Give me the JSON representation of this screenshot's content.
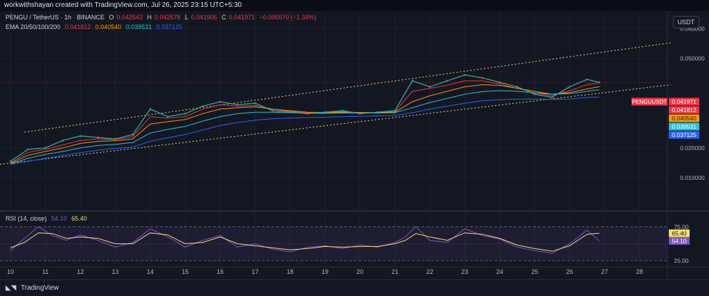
{
  "header": {
    "attribution": "workwithshayan created with TradingView.com, Jul 26, 2025 23:15 UTC+5:30"
  },
  "legend": {
    "symbol": "PENGU / TetherUS · 1h · BINANCE",
    "ohlc": [
      {
        "k": "O",
        "v": "0.042543"
      },
      {
        "k": "H",
        "v": "0.042578"
      },
      {
        "k": "L",
        "v": "0.041905"
      },
      {
        "k": "C",
        "v": "0.041971"
      }
    ],
    "change": "−0.000570 (−1.34%)",
    "ema_label": "EMA 20/50/100/200",
    "ema_values": [
      {
        "v": "0.041812",
        "color": "#f23645"
      },
      {
        "v": "0.040540",
        "color": "#ff9800"
      },
      {
        "v": "0.039531",
        "color": "#26c6da"
      },
      {
        "v": "0.037125",
        "color": "#2962ff"
      }
    ],
    "rsi_label": "RSI (14, close)",
    "rsi_value": "54.10",
    "rsi_ma_value": "65.40"
  },
  "currency": "USDT",
  "price_axis": {
    "ticks": [
      "0.060000",
      "0.050000",
      "0.020000",
      "0.010000"
    ]
  },
  "price_tags": {
    "symbol": "PENGUUSDT",
    "items": [
      {
        "label": "0.041971",
        "value": 0.041971,
        "color": "#f23645"
      },
      {
        "label": "0.041812",
        "value": 0.041812,
        "color": "#f23645"
      },
      {
        "label": "0.040540",
        "value": 0.04054,
        "color": "#ff9800"
      },
      {
        "label": "0.039531",
        "value": 0.039531,
        "color": "#26c6da"
      },
      {
        "label": "0.037125",
        "value": 0.037125,
        "color": "#2962ff"
      }
    ]
  },
  "rsi_axis": {
    "ticks": [
      "75.00",
      "25.00"
    ],
    "tags": [
      {
        "label": "65.40",
        "value": 65.4,
        "color": "#f7dd74",
        "text": "#131722"
      },
      {
        "label": "54.10",
        "value": 54.1,
        "color": "#7e57c2",
        "text": "#ffffff"
      }
    ]
  },
  "time_axis": {
    "labels": [
      "10",
      "11",
      "12",
      "13",
      "14",
      "15",
      "16",
      "17",
      "18",
      "19",
      "20",
      "21",
      "22",
      "23",
      "24",
      "25",
      "26",
      "27",
      "28"
    ]
  },
  "footer": {
    "brand": "TradingView"
  },
  "chart_data": {
    "type": "line",
    "title": "PENGU / TetherUS · 1h · BINANCE",
    "xlabel": "",
    "ylabel": "",
    "x": [
      10,
      10.5,
      11,
      11.5,
      12,
      12.5,
      13,
      13.5,
      14,
      14.5,
      15,
      15.5,
      16,
      16.5,
      17,
      17.5,
      18,
      18.5,
      19,
      19.5,
      20,
      20.5,
      21,
      21.5,
      22,
      22.5,
      23,
      23.5,
      24,
      24.5,
      25,
      25.5,
      26,
      26.5,
      26.85
    ],
    "ylim": [
      0,
      0.065
    ],
    "xlim": [
      9.7,
      28.8
    ],
    "series": [
      {
        "name": "PENGUUSDT",
        "color": "#26a69a",
        "values": [
          0.0155,
          0.0195,
          0.02,
          0.0225,
          0.024,
          0.0235,
          0.023,
          0.0245,
          0.033,
          0.0305,
          0.0315,
          0.034,
          0.0355,
          0.0345,
          0.035,
          0.0325,
          0.032,
          0.0315,
          0.032,
          0.0325,
          0.0315,
          0.032,
          0.0325,
          0.0425,
          0.0405,
          0.0425,
          0.0445,
          0.0435,
          0.042,
          0.0405,
          0.038,
          0.037,
          0.0405,
          0.043,
          0.041971
        ]
      },
      {
        "name": "EMA 20",
        "color": "#f23645",
        "values": [
          0.015,
          0.0185,
          0.0195,
          0.021,
          0.0225,
          0.023,
          0.0228,
          0.0238,
          0.0305,
          0.03,
          0.0305,
          0.033,
          0.0345,
          0.034,
          0.0343,
          0.033,
          0.0322,
          0.0318,
          0.0318,
          0.0322,
          0.0318,
          0.0319,
          0.0322,
          0.039,
          0.04,
          0.041,
          0.0425,
          0.0425,
          0.0415,
          0.04,
          0.0385,
          0.0375,
          0.0392,
          0.0412,
          0.041812
        ]
      },
      {
        "name": "EMA 50",
        "color": "#ff9800",
        "values": [
          0.0148,
          0.0175,
          0.0188,
          0.02,
          0.0215,
          0.0222,
          0.0224,
          0.023,
          0.028,
          0.0288,
          0.0295,
          0.0315,
          0.033,
          0.0335,
          0.0338,
          0.033,
          0.0325,
          0.032,
          0.0319,
          0.032,
          0.0319,
          0.0319,
          0.032,
          0.0355,
          0.0375,
          0.039,
          0.0405,
          0.0412,
          0.041,
          0.04,
          0.039,
          0.038,
          0.0386,
          0.0398,
          0.04054
        ]
      },
      {
        "name": "EMA 100",
        "color": "#26c6da",
        "values": [
          0.0146,
          0.0165,
          0.0178,
          0.0188,
          0.02,
          0.0208,
          0.0212,
          0.0218,
          0.025,
          0.0262,
          0.0272,
          0.029,
          0.0305,
          0.0315,
          0.032,
          0.032,
          0.0318,
          0.0316,
          0.0316,
          0.0317,
          0.0317,
          0.0317,
          0.0318,
          0.0335,
          0.0352,
          0.0366,
          0.038,
          0.0389,
          0.0392,
          0.039,
          0.0385,
          0.038,
          0.0382,
          0.039,
          0.039531
        ]
      },
      {
        "name": "EMA 200",
        "color": "#2962ff",
        "values": [
          0.0145,
          0.0155,
          0.0165,
          0.0174,
          0.0184,
          0.0192,
          0.0198,
          0.0203,
          0.0222,
          0.0234,
          0.0245,
          0.026,
          0.0275,
          0.0285,
          0.0293,
          0.0298,
          0.03,
          0.0302,
          0.0303,
          0.0305,
          0.0306,
          0.0307,
          0.0309,
          0.0318,
          0.033,
          0.034,
          0.035,
          0.0358,
          0.0362,
          0.0364,
          0.0364,
          0.0363,
          0.0364,
          0.0369,
          0.037125
        ]
      }
    ],
    "channel": {
      "upper": {
        "x": [
          10.4,
          28.9
        ],
        "y": [
          0.0253,
          0.0553
        ]
      },
      "lower": {
        "x": [
          9.7,
          28.9
        ],
        "y": [
          0.0145,
          0.0412
        ]
      }
    },
    "rsi": {
      "ylim": [
        20,
        85
      ],
      "x": [
        10,
        10.4,
        10.8,
        11.2,
        11.6,
        12,
        12.5,
        13,
        13.5,
        14,
        14.5,
        15,
        15.5,
        16,
        16.5,
        17,
        17.5,
        18,
        18.5,
        19,
        19.5,
        20,
        20.5,
        21,
        21.3,
        21.6,
        22,
        22.5,
        23,
        23.5,
        24,
        24.5,
        25,
        25.5,
        26,
        26.5,
        26.85
      ],
      "rsi_values": [
        40,
        58,
        75,
        62,
        55,
        63,
        55,
        45,
        52,
        72,
        60,
        45,
        55,
        62,
        45,
        50,
        42,
        38,
        45,
        47,
        43,
        48,
        45,
        52,
        60,
        75,
        55,
        52,
        72,
        62,
        57,
        45,
        40,
        36,
        50,
        70,
        54.1
      ],
      "rsi_ma_values": [
        44,
        52,
        66,
        65,
        58,
        60,
        58,
        50,
        50,
        66,
        63,
        50,
        52,
        60,
        50,
        47,
        44,
        41,
        43,
        46,
        45,
        46,
        46,
        50,
        55,
        65,
        60,
        55,
        66,
        64,
        58,
        48,
        43,
        39,
        47,
        64,
        65.4
      ],
      "upper_band": 75,
      "lower_band": 25,
      "mid": 50
    }
  }
}
